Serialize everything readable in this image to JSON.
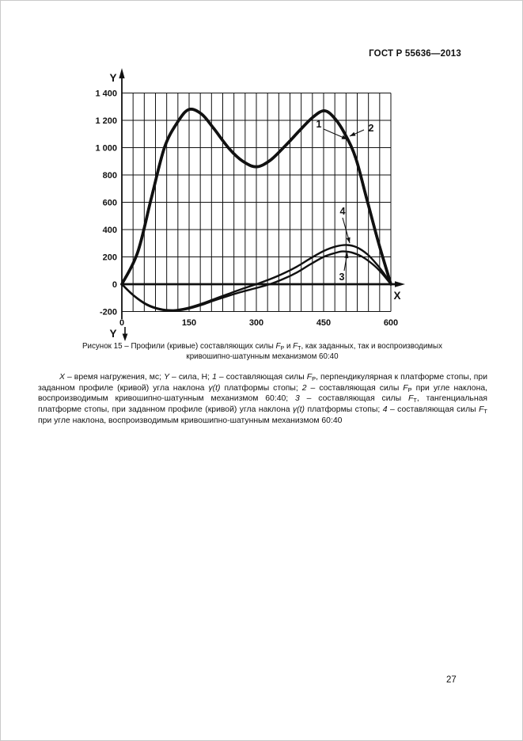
{
  "page": {
    "header": "ГОСТ Р 55636—2013",
    "page_number": "27"
  },
  "chart_data": {
    "type": "line",
    "xlabel": "X",
    "ylabel": "Y",
    "ylabel_bottom": "Y",
    "x_unit": "время нагружения, мс",
    "y_unit": "сила, Н",
    "xlim": [
      0,
      600
    ],
    "ylim": [
      -200,
      1400
    ],
    "grid": {
      "on": true,
      "x_step": 25,
      "y_step": 200
    },
    "x_ticks": [
      {
        "v": 0,
        "label": "0"
      },
      {
        "v": 150,
        "label": "150"
      },
      {
        "v": 300,
        "label": "300"
      },
      {
        "v": 450,
        "label": "450"
      },
      {
        "v": 600,
        "label": "600"
      }
    ],
    "y_ticks": [
      {
        "v": 1400,
        "label": "1 400"
      },
      {
        "v": 1200,
        "label": "1 200"
      },
      {
        "v": 1000,
        "label": "1 000"
      },
      {
        "v": 800,
        "label": "800"
      },
      {
        "v": 600,
        "label": "600"
      },
      {
        "v": 400,
        "label": "400"
      },
      {
        "v": 200,
        "label": "200"
      },
      {
        "v": 0,
        "label": "0"
      },
      {
        "v": -200,
        "label": "-200"
      }
    ],
    "series": [
      {
        "id": "1",
        "name": "Составляющая силы Fp, перпендикулярная платформе стопы (заданный профиль)",
        "width": 3.6,
        "points": [
          [
            0,
            0
          ],
          [
            35,
            230
          ],
          [
            65,
            620
          ],
          [
            95,
            1000
          ],
          [
            125,
            1190
          ],
          [
            150,
            1280
          ],
          [
            178,
            1245
          ],
          [
            205,
            1140
          ],
          [
            240,
            990
          ],
          [
            270,
            900
          ],
          [
            300,
            860
          ],
          [
            330,
            905
          ],
          [
            362,
            1005
          ],
          [
            395,
            1120
          ],
          [
            425,
            1220
          ],
          [
            452,
            1270
          ],
          [
            476,
            1210
          ],
          [
            500,
            1085
          ],
          [
            522,
            920
          ],
          [
            545,
            640
          ],
          [
            572,
            310
          ],
          [
            600,
            0
          ]
        ]
      },
      {
        "id": "2",
        "name": "Составляющая силы Fp при угле наклона кривошипно-шатунного механизма 60:40",
        "width": 3.6,
        "points": [
          [
            0,
            0
          ],
          [
            35,
            230
          ],
          [
            65,
            620
          ],
          [
            95,
            1000
          ],
          [
            125,
            1190
          ],
          [
            150,
            1280
          ],
          [
            178,
            1245
          ],
          [
            205,
            1140
          ],
          [
            240,
            990
          ],
          [
            270,
            900
          ],
          [
            300,
            860
          ],
          [
            330,
            905
          ],
          [
            362,
            1005
          ],
          [
            395,
            1120
          ],
          [
            425,
            1220
          ],
          [
            452,
            1270
          ],
          [
            476,
            1210
          ],
          [
            500,
            1085
          ],
          [
            522,
            920
          ],
          [
            545,
            640
          ],
          [
            572,
            310
          ],
          [
            600,
            0
          ]
        ]
      },
      {
        "id": "3",
        "name": "Составляющая силы Fт, тангенциальная платформе стопы (заданный профиль)",
        "width": 2.4,
        "points": [
          [
            0,
            0
          ],
          [
            25,
            -80
          ],
          [
            55,
            -150
          ],
          [
            85,
            -185
          ],
          [
            115,
            -195
          ],
          [
            145,
            -182
          ],
          [
            175,
            -155
          ],
          [
            205,
            -120
          ],
          [
            235,
            -88
          ],
          [
            265,
            -58
          ],
          [
            295,
            -32
          ],
          [
            330,
            0
          ],
          [
            360,
            38
          ],
          [
            390,
            85
          ],
          [
            420,
            145
          ],
          [
            450,
            200
          ],
          [
            473,
            226
          ],
          [
            492,
            240
          ],
          [
            512,
            233
          ],
          [
            535,
            203
          ],
          [
            560,
            145
          ],
          [
            580,
            80
          ],
          [
            600,
            0
          ]
        ]
      },
      {
        "id": "4",
        "name": "Составляющая силы Fт при угле наклона кривошипно-шатунного механизма 60:40",
        "width": 2.4,
        "points": [
          [
            0,
            0
          ],
          [
            25,
            -78
          ],
          [
            55,
            -146
          ],
          [
            85,
            -181
          ],
          [
            115,
            -190
          ],
          [
            145,
            -175
          ],
          [
            175,
            -146
          ],
          [
            205,
            -110
          ],
          [
            235,
            -74
          ],
          [
            265,
            -38
          ],
          [
            300,
            0
          ],
          [
            330,
            36
          ],
          [
            360,
            78
          ],
          [
            390,
            128
          ],
          [
            420,
            188
          ],
          [
            450,
            243
          ],
          [
            478,
            277
          ],
          [
            502,
            287
          ],
          [
            524,
            270
          ],
          [
            548,
            218
          ],
          [
            570,
            140
          ],
          [
            586,
            72
          ],
          [
            600,
            0
          ]
        ]
      }
    ],
    "annotations": [
      {
        "label": "1",
        "lx": 312,
        "ly": 80,
        "x1": 318,
        "y1": 82,
        "x2": 348,
        "y2": 95
      },
      {
        "label": "2",
        "lx": 378,
        "ly": 85,
        "x1": 369,
        "y1": 83,
        "x2": 351,
        "y2": 91
      },
      {
        "label": "4",
        "lx": 342,
        "ly": 190,
        "x1": 342,
        "y1": 194,
        "x2": 351,
        "y2": 226
      },
      {
        "label": "3",
        "lx": 341,
        "ly": 273,
        "x1": 344,
        "y1": 261,
        "x2": 348,
        "y2": 238
      }
    ]
  },
  "caption": {
    "line1": [
      {
        "t": "Рисунок 15 – Профили (кривые)  составляющих силы "
      },
      {
        "t": "F",
        "i": true
      },
      {
        "t": "P",
        "sub": true
      },
      {
        "t": " и "
      },
      {
        "t": "F",
        "i": true
      },
      {
        "t": "T",
        "sub": true
      },
      {
        "t": ", как заданных, так и воспроизводимых"
      }
    ],
    "line2": [
      {
        "t": "кривошипно-шатунным механизмом 60:40"
      }
    ]
  },
  "legend": {
    "segments": [
      {
        "t": "X",
        "i": true
      },
      {
        "t": " – время нагружения, мс; "
      },
      {
        "t": "Y",
        "i": true
      },
      {
        "t": " – сила, Н; "
      },
      {
        "t": "1",
        "i": true
      },
      {
        "t": " – составляющая силы "
      },
      {
        "t": "F",
        "i": true
      },
      {
        "t": "P",
        "sub": true
      },
      {
        "t": ", перпендикулярная к платформе стопы, при заданном профиле (кривой) угла наклона "
      },
      {
        "t": "γ(t)",
        "i": true
      },
      {
        "t": " платформы стопы; "
      },
      {
        "t": "2",
        "i": true
      },
      {
        "t": " – составляющая силы "
      },
      {
        "t": "F",
        "i": true
      },
      {
        "t": "P",
        "sub": true
      },
      {
        "t": " при угле наклона, воспроизводимым кривошипно-шатунным механизмом 60:40; "
      },
      {
        "t": "3",
        "i": true
      },
      {
        "t": " – составляющая силы "
      },
      {
        "t": "F",
        "i": true
      },
      {
        "t": "T",
        "sub": true
      },
      {
        "t": ", тангенциальная платформе стопы, при заданном профиле (кривой) угла наклона "
      },
      {
        "t": "γ(t)",
        "i": true
      },
      {
        "t": " платформы стопы; "
      },
      {
        "t": "4",
        "i": true
      },
      {
        "t": " – составляющая силы "
      },
      {
        "t": "F",
        "i": true
      },
      {
        "t": "T",
        "sub": true
      },
      {
        "t": " при угле наклона, воспроизводимым кривошипно-шатунным механизмом 60:40"
      }
    ]
  },
  "colors": {
    "ink": "#111111",
    "paper": "#ffffff",
    "border": "#c9c9c9"
  }
}
